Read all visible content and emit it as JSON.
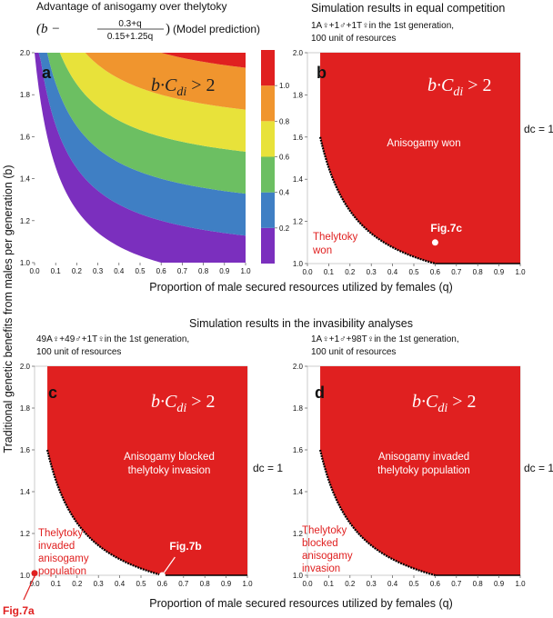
{
  "header": {
    "title_a_line1": "Advantage of anisogamy over thelytoky",
    "title_a_formula_prefix": "(b −",
    "title_a_formula_num": "0.3+q",
    "title_a_formula_den": "0.15+1.25q",
    "title_a_formula_suffix": ")",
    "title_a_note": "(Model prediction)",
    "title_b": "Simulation results in equal competition",
    "subtitle_b_line1": "1A♀+1♂+1T♀in the 1st generation,",
    "subtitle_b_line2": "100 unit of resources",
    "title_bottom": "Simulation results in the invasibility analyses",
    "subtitle_c_line1": "49A♀+49♂+1T♀in the 1st generation,",
    "subtitle_c_line2": "100 unit of resources",
    "subtitle_d_line1": "1A♀+1♂+98T♀in the 1st generation,",
    "subtitle_d_line2": "100 unit of resources"
  },
  "axes": {
    "xlabel_top": "Proportion of male secured resources utilized by females (q)",
    "xlabel_bottom": "Proportion of male secured resources utilized by females (q)",
    "ylabel": "Traditional genetic benefits from males per generation (b)"
  },
  "panels": {
    "a": {
      "letter": "a",
      "condition": "b·C_di > 2"
    },
    "b": {
      "letter": "b",
      "condition": "b·C_di > 2",
      "region_main": "Anisogamy won",
      "region_left_1": "Thelytoky",
      "region_left_2": "won",
      "marker_label": "Fig.7c",
      "dc_label": "d_c = 1"
    },
    "c": {
      "letter": "c",
      "condition": "b·C_di > 2",
      "region_main_1": "Anisogamy blocked",
      "region_main_2": "thelytoky invasion",
      "region_left_1": "Thelytoky",
      "region_left_2": "invaded",
      "region_left_3": "anisogamy",
      "region_left_4": "population",
      "marker_label": "Fig.7b",
      "marker_label_2": "Fig.7a",
      "dc_label": "d_c = 1"
    },
    "d": {
      "letter": "d",
      "condition": "b·C_di > 2",
      "region_main_1": "Anisogamy invaded",
      "region_main_2": "thelytoky population",
      "region_left_1": "Thelytoky",
      "region_left_2": "blocked",
      "region_left_3": "anisogamy",
      "region_left_4": "invasion",
      "dc_label": "d_c = 1"
    }
  },
  "colors": {
    "red": "#e02020",
    "contours": [
      "#7b2fbe",
      "#3f7fc4",
      "#6cbf62",
      "#e8e23a",
      "#f0952e",
      "#e02020"
    ]
  },
  "chart_data": [
    {
      "type": "heatmap",
      "panel": "a",
      "title": "Advantage of anisogamy over thelytoky",
      "xlabel": "Proportion of male secured resources utilized by females (q)",
      "ylabel": "Traditional genetic benefits from males per generation (b)",
      "xlim": [
        0,
        1
      ],
      "ylim": [
        1,
        2
      ],
      "xticks": [
        "0.0",
        "0.1",
        "0.2",
        "0.3",
        "0.4",
        "0.5",
        "0.6",
        "0.7",
        "0.8",
        "0.9",
        "1.0"
      ],
      "yticks": [
        "1.0",
        "1.2",
        "1.4",
        "1.6",
        "1.8",
        "2.0"
      ],
      "function": "b - (0.3+q)/(0.15+1.25q)",
      "contour_levels": [
        0,
        0.2,
        0.4,
        0.6,
        0.8,
        1.0
      ],
      "colorbar_ticks": [
        "0.2",
        "0.4",
        "0.6",
        "0.8",
        "1.0"
      ],
      "colorbar_range": [
        0,
        1.2
      ],
      "region_label": "b·C_di > 2"
    },
    {
      "type": "area",
      "panel": "b",
      "xlim": [
        0,
        1
      ],
      "ylim": [
        1,
        2
      ],
      "xticks": [
        "0.0",
        "0.1",
        "0.2",
        "0.3",
        "0.4",
        "0.5",
        "0.6",
        "0.7",
        "0.8",
        "0.9",
        "1.0"
      ],
      "yticks": [
        "1.0",
        "1.2",
        "1.4",
        "1.6",
        "1.8",
        "2.0"
      ],
      "boundary": "b = (0.3+q)/(0.15+1.25q)",
      "marker": {
        "q": 0.6,
        "b": 1.1,
        "label": "Fig.7c"
      }
    },
    {
      "type": "area",
      "panel": "c",
      "xlim": [
        0,
        1
      ],
      "ylim": [
        1,
        2
      ],
      "xticks": [
        "0.0",
        "0.1",
        "0.2",
        "0.3",
        "0.4",
        "0.5",
        "0.6",
        "0.7",
        "0.8",
        "0.9",
        "1.0"
      ],
      "yticks": [
        "1.0",
        "1.2",
        "1.4",
        "1.6",
        "1.8",
        "2.0"
      ],
      "boundary": "b = (0.3+q)/(0.15+1.25q)",
      "markers": [
        {
          "q": 0.6,
          "b": 1.0,
          "label": "Fig.7b"
        },
        {
          "q": 0.0,
          "b": 1.01,
          "label": "Fig.7a"
        }
      ]
    },
    {
      "type": "area",
      "panel": "d",
      "xlim": [
        0,
        1
      ],
      "ylim": [
        1,
        2
      ],
      "xticks": [
        "0.0",
        "0.1",
        "0.2",
        "0.3",
        "0.4",
        "0.5",
        "0.6",
        "0.7",
        "0.8",
        "0.9",
        "1.0"
      ],
      "yticks": [
        "1.0",
        "1.2",
        "1.4",
        "1.6",
        "1.8",
        "2.0"
      ],
      "boundary": "b = (0.3+q)/(0.15+1.25q)"
    }
  ]
}
